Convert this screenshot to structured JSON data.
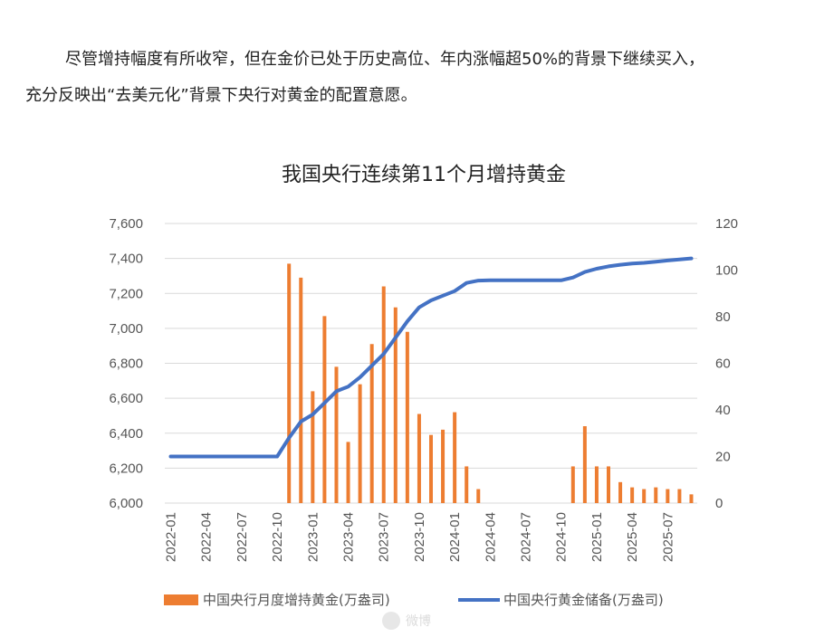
{
  "article": {
    "line1": "尽管增持幅度有所收窄，但在金价已处于历史高位、年内涨幅超50%的背景下继续买入，",
    "line2": "充分反映出“去美元化”背景下央行对黄金的配置意愿。"
  },
  "chart_data": {
    "type": "bar+line",
    "title": "我国央行连续第11个月增持黄金",
    "left_axis": {
      "ticks": [
        "6,000",
        "6,200",
        "6,400",
        "6,600",
        "6,800",
        "7,000",
        "7,200",
        "7,400",
        "7,600"
      ],
      "ylim": [
        6000,
        7600
      ]
    },
    "right_axis": {
      "ticks": [
        "0",
        "20",
        "40",
        "60",
        "80",
        "100",
        "120"
      ],
      "ylim": [
        0,
        120
      ]
    },
    "x_tick_labels": [
      "2022-01",
      "2022-04",
      "2022-07",
      "2022-10",
      "2023-01",
      "2023-04",
      "2023-07",
      "2023-10",
      "2024-01",
      "2024-04",
      "2024-07",
      "2024-10",
      "2025-01",
      "2025-04",
      "2025-07"
    ],
    "months": [
      "2022-01",
      "2022-02",
      "2022-03",
      "2022-04",
      "2022-05",
      "2022-06",
      "2022-07",
      "2022-08",
      "2022-09",
      "2022-10",
      "2022-11",
      "2022-12",
      "2023-01",
      "2023-02",
      "2023-03",
      "2023-04",
      "2023-05",
      "2023-06",
      "2023-07",
      "2023-08",
      "2023-09",
      "2023-10",
      "2023-11",
      "2023-12",
      "2024-01",
      "2024-02",
      "2024-03",
      "2024-04",
      "2024-05",
      "2024-06",
      "2024-07",
      "2024-08",
      "2024-09",
      "2024-10",
      "2024-11",
      "2024-12",
      "2025-01",
      "2025-02",
      "2025-03",
      "2025-04",
      "2025-05",
      "2025-06",
      "2025-07",
      "2025-08",
      "2025-09"
    ],
    "series": [
      {
        "name": "中国央行月度增持黄金(万盎司)",
        "kind": "bar",
        "axis": "left",
        "color": "#ED7D31",
        "values": [
          null,
          null,
          null,
          null,
          null,
          null,
          null,
          null,
          null,
          null,
          7370,
          7290,
          6640,
          7070,
          6780,
          6350,
          6680,
          6910,
          7240,
          7120,
          6980,
          6510,
          6390,
          6420,
          6520,
          6210,
          6080,
          null,
          null,
          null,
          null,
          null,
          null,
          null,
          6210,
          6440,
          6210,
          6210,
          6120,
          6090,
          6080,
          6090,
          6080,
          6080,
          6050
        ]
      },
      {
        "name": "中国央行黄金储备(万盎司)",
        "kind": "line",
        "axis": "right",
        "color": "#4472C4",
        "values": [
          20,
          20,
          20,
          20,
          20,
          20,
          20,
          20,
          20,
          20,
          28,
          35,
          38,
          43,
          48,
          50,
          54,
          59,
          64,
          71,
          78,
          84,
          87,
          89,
          91,
          94.5,
          95.5,
          95.6,
          95.6,
          95.6,
          95.6,
          95.6,
          95.6,
          95.6,
          96.8,
          99.2,
          100.6,
          101.6,
          102.3,
          102.8,
          103.1,
          103.6,
          104.1,
          104.6,
          105.0
        ]
      }
    ]
  },
  "watermark": "微博"
}
